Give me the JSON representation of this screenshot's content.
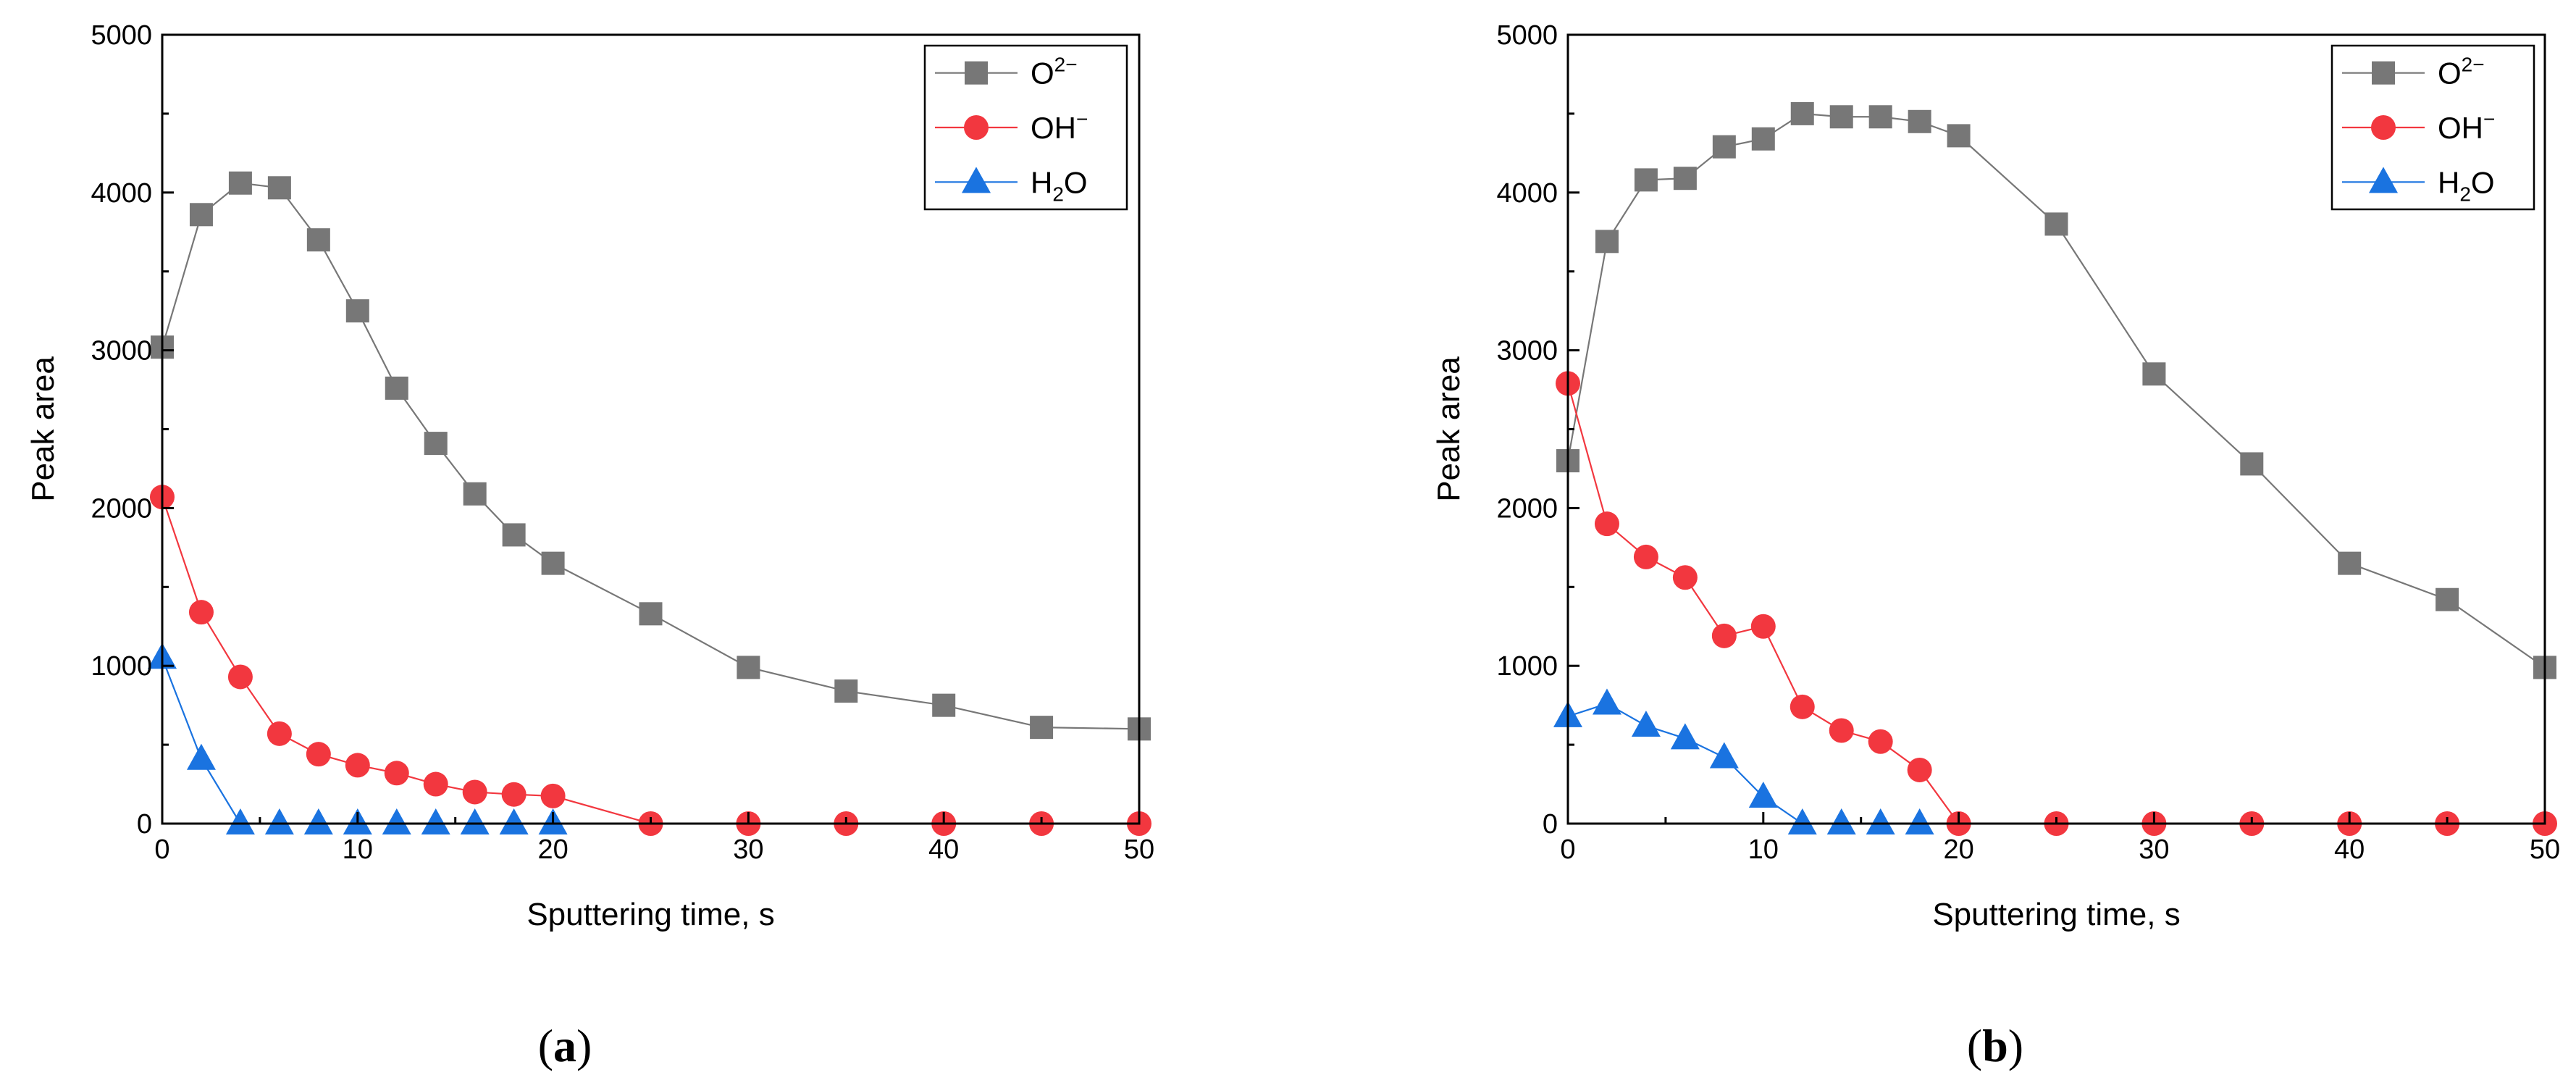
{
  "chart_data": [
    {
      "type": "line",
      "panel_label": "a",
      "xlabel": "Sputtering time, s",
      "ylabel": "Peak area",
      "xlim": [
        0,
        50
      ],
      "ylim": [
        0,
        5000
      ],
      "xticks": [
        0,
        10,
        20,
        30,
        40,
        50
      ],
      "yticks": [
        0,
        1000,
        2000,
        3000,
        4000,
        5000
      ],
      "legend_position": "top-right",
      "series": [
        {
          "name": "O2-",
          "label_main": "O",
          "label_sup": "2−",
          "label_sub": "",
          "label_tail": "",
          "marker": "square",
          "color": "#777777",
          "line_color": "#777777",
          "x": [
            0,
            2,
            4,
            6,
            8,
            10,
            12,
            14,
            16,
            18,
            20,
            25,
            30,
            35,
            40,
            45,
            50
          ],
          "y": [
            3020,
            3860,
            4060,
            4030,
            3700,
            3250,
            2760,
            2410,
            2090,
            1830,
            1650,
            1330,
            990,
            840,
            750,
            610,
            600
          ]
        },
        {
          "name": "OH-",
          "label_main": "OH",
          "label_sup": "−",
          "label_sub": "",
          "label_tail": "",
          "marker": "circle",
          "color": "#f2373f",
          "line_color": "#f2373f",
          "x": [
            0,
            2,
            4,
            6,
            8,
            10,
            12,
            14,
            16,
            18,
            20,
            25,
            30,
            35,
            40,
            45,
            50
          ],
          "y": [
            2070,
            1340,
            930,
            570,
            440,
            370,
            320,
            250,
            200,
            185,
            175,
            0,
            0,
            0,
            0,
            0,
            0
          ]
        },
        {
          "name": "H2O",
          "label_main": "H",
          "label_sup": "",
          "label_sub": "2",
          "label_tail": "O",
          "marker": "triangle",
          "color": "#1a73e0",
          "line_color": "#1a73e0",
          "x": [
            0,
            2,
            4,
            6,
            8,
            10,
            12,
            14,
            16,
            18,
            20
          ],
          "y": [
            1050,
            410,
            0,
            0,
            0,
            0,
            0,
            0,
            0,
            0,
            0
          ]
        }
      ]
    },
    {
      "type": "line",
      "panel_label": "b",
      "xlabel": "Sputtering time, s",
      "ylabel": "Peak area",
      "xlim": [
        0,
        50
      ],
      "ylim": [
        0,
        5000
      ],
      "xticks": [
        0,
        10,
        20,
        30,
        40,
        50
      ],
      "yticks": [
        0,
        1000,
        2000,
        3000,
        4000,
        5000
      ],
      "legend_position": "top-right",
      "series": [
        {
          "name": "O2-",
          "label_main": "O",
          "label_sup": "2−",
          "label_sub": "",
          "label_tail": "",
          "marker": "square",
          "color": "#777777",
          "line_color": "#777777",
          "x": [
            0,
            2,
            4,
            6,
            8,
            10,
            12,
            14,
            16,
            18,
            20,
            25,
            30,
            35,
            40,
            45,
            50
          ],
          "y": [
            2300,
            3690,
            4080,
            4090,
            4290,
            4340,
            4500,
            4480,
            4480,
            4450,
            4360,
            3800,
            2850,
            2280,
            1650,
            1420,
            990
          ]
        },
        {
          "name": "OH-",
          "label_main": "OH",
          "label_sup": "−",
          "label_sub": "",
          "label_tail": "",
          "marker": "circle",
          "color": "#f2373f",
          "line_color": "#f2373f",
          "x": [
            0,
            2,
            4,
            6,
            8,
            10,
            12,
            14,
            16,
            18,
            20,
            25,
            30,
            35,
            40,
            45,
            50
          ],
          "y": [
            2790,
            1900,
            1690,
            1560,
            1190,
            1250,
            740,
            590,
            520,
            340,
            0,
            0,
            0,
            0,
            0,
            0,
            0
          ]
        },
        {
          "name": "H2O",
          "label_main": "H",
          "label_sup": "",
          "label_sub": "2",
          "label_tail": "O",
          "marker": "triangle",
          "color": "#1a73e0",
          "line_color": "#1a73e0",
          "x": [
            0,
            2,
            4,
            6,
            8,
            10,
            12,
            14,
            16,
            18
          ],
          "y": [
            680,
            760,
            620,
            540,
            420,
            170,
            0,
            0,
            0,
            0
          ]
        }
      ]
    }
  ]
}
